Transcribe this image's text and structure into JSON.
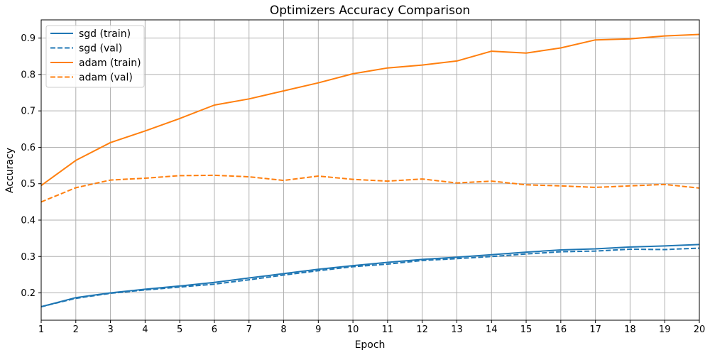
{
  "chart_data": {
    "type": "line",
    "title": "Optimizers Accuracy Comparison",
    "xlabel": "Epoch",
    "ylabel": "Accuracy",
    "x": [
      1,
      2,
      3,
      4,
      5,
      6,
      7,
      8,
      9,
      10,
      11,
      12,
      13,
      14,
      15,
      16,
      17,
      18,
      19,
      20
    ],
    "xlim": [
      1,
      20
    ],
    "ylim": [
      0.125,
      0.95
    ],
    "yticks": [
      0.2,
      0.3,
      0.4,
      0.5,
      0.6,
      0.7,
      0.8,
      0.9
    ],
    "grid": true,
    "legend_position": "top-left",
    "series": [
      {
        "name": "sgd (train)",
        "color": "#1f77b4",
        "dash": false,
        "values": [
          0.162,
          0.187,
          0.2,
          0.21,
          0.219,
          0.229,
          0.241,
          0.253,
          0.265,
          0.275,
          0.284,
          0.292,
          0.298,
          0.305,
          0.312,
          0.318,
          0.321,
          0.326,
          0.329,
          0.333
        ]
      },
      {
        "name": "sgd (val)",
        "color": "#1f77b4",
        "dash": true,
        "values": [
          0.162,
          0.185,
          0.199,
          0.208,
          0.216,
          0.224,
          0.236,
          0.249,
          0.261,
          0.272,
          0.279,
          0.289,
          0.294,
          0.3,
          0.307,
          0.313,
          0.315,
          0.32,
          0.319,
          0.323
        ]
      },
      {
        "name": "adam (train)",
        "color": "#ff7f0e",
        "dash": false,
        "values": [
          0.495,
          0.564,
          0.613,
          0.645,
          0.679,
          0.716,
          0.733,
          0.755,
          0.777,
          0.802,
          0.818,
          0.826,
          0.837,
          0.864,
          0.859,
          0.873,
          0.895,
          0.898,
          0.906,
          0.91
        ]
      },
      {
        "name": "adam (val)",
        "color": "#ff7f0e",
        "dash": true,
        "values": [
          0.45,
          0.489,
          0.51,
          0.515,
          0.522,
          0.523,
          0.519,
          0.509,
          0.521,
          0.512,
          0.507,
          0.513,
          0.502,
          0.507,
          0.497,
          0.494,
          0.49,
          0.494,
          0.498,
          0.488
        ]
      }
    ]
  }
}
